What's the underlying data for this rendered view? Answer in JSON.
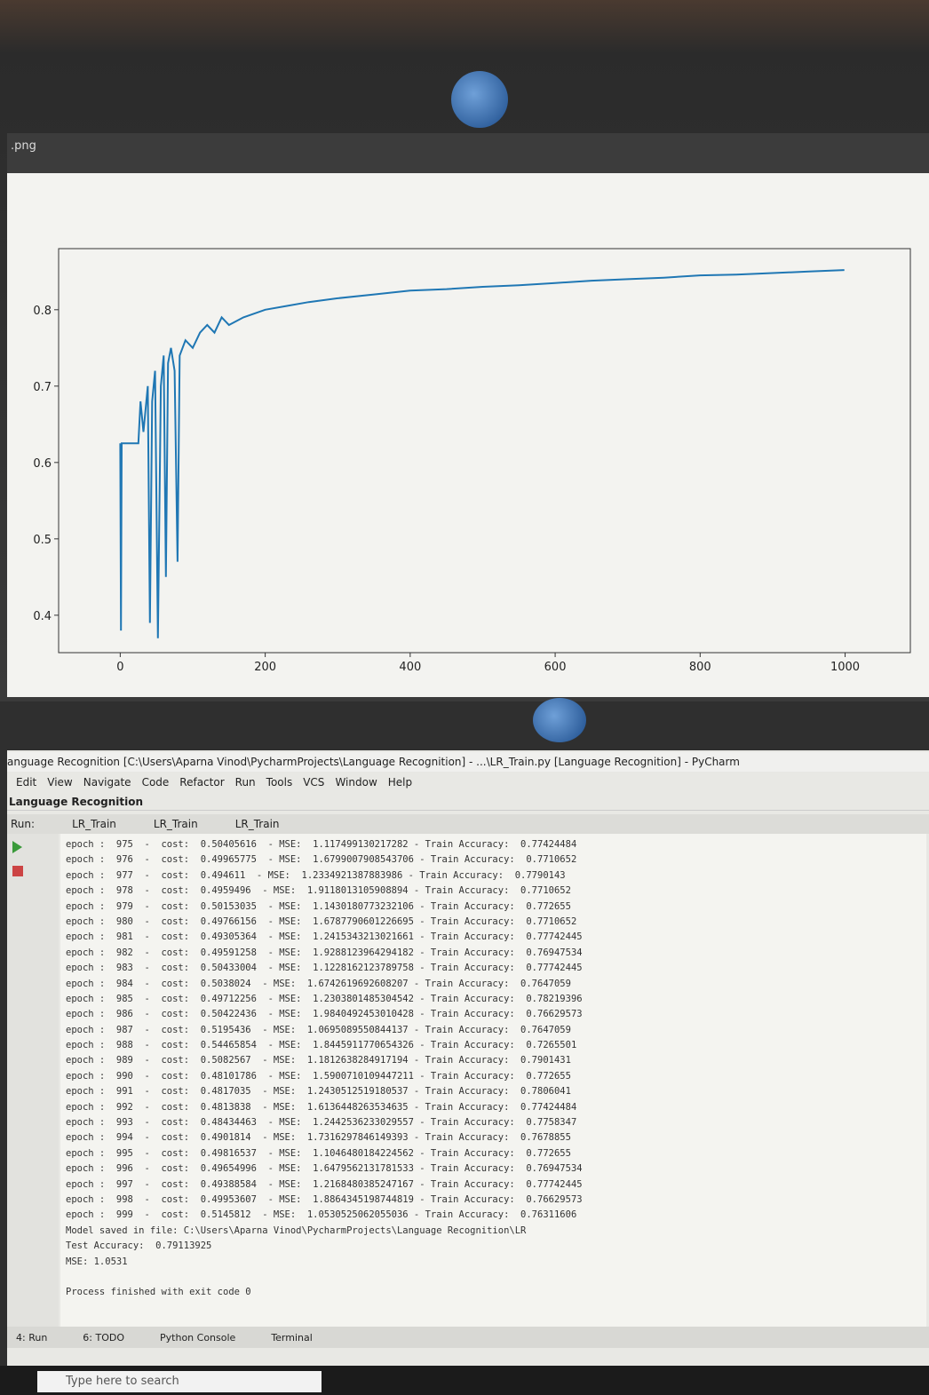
{
  "image_viewer": {
    "title": ".png"
  },
  "chart_data": {
    "type": "line",
    "color": "#1f77b4",
    "x": [
      0,
      1,
      2,
      25,
      28,
      32,
      38,
      41,
      44,
      48,
      52,
      56,
      60,
      63,
      66,
      70,
      75,
      79,
      82,
      90,
      100,
      110,
      120,
      130,
      140,
      150,
      170,
      200,
      230,
      260,
      300,
      350,
      400,
      450,
      500,
      550,
      600,
      650,
      700,
      750,
      800,
      850,
      900,
      950,
      999
    ],
    "values": [
      0.625,
      0.38,
      0.625,
      0.625,
      0.68,
      0.64,
      0.7,
      0.39,
      0.68,
      0.72,
      0.37,
      0.7,
      0.74,
      0.45,
      0.73,
      0.75,
      0.72,
      0.47,
      0.74,
      0.76,
      0.75,
      0.77,
      0.78,
      0.77,
      0.79,
      0.78,
      0.79,
      0.8,
      0.805,
      0.81,
      0.815,
      0.82,
      0.825,
      0.827,
      0.83,
      0.832,
      0.835,
      0.838,
      0.84,
      0.842,
      0.845,
      0.846,
      0.848,
      0.85,
      0.852
    ],
    "xlim": [
      -85,
      1090
    ],
    "ylim": [
      0.351,
      0.88
    ],
    "xticks": [
      0,
      200,
      400,
      600,
      800,
      1000
    ],
    "yticks": [
      0.4,
      0.5,
      0.6,
      0.7,
      0.8
    ]
  },
  "ide": {
    "title": "anguage Recognition [C:\\Users\\Aparna Vinod\\PycharmProjects\\Language Recognition] - ...\\LR_Train.py [Language Recognition] - PyCharm",
    "menu": [
      "Edit",
      "View",
      "Navigate",
      "Code",
      "Refactor",
      "Run",
      "Tools",
      "VCS",
      "Window",
      "Help"
    ],
    "breadcrumb": "Language Recognition",
    "run_label": "Run:",
    "run_tabs": [
      "LR_Train",
      "LR_Train",
      "LR_Train"
    ],
    "console": [
      "epoch :  975  -  cost:  0.50405616  - MSE:  1.117499130217282 - Train Accuracy:  0.77424484",
      "epoch :  976  -  cost:  0.49965775  - MSE:  1.6799007908543706 - Train Accuracy:  0.7710652",
      "epoch :  977  -  cost:  0.494611  - MSE:  1.2334921387883986 - Train Accuracy:  0.7790143",
      "epoch :  978  -  cost:  0.4959496  - MSE:  1.9118013105908894 - Train Accuracy:  0.7710652",
      "epoch :  979  -  cost:  0.50153035  - MSE:  1.1430180773232106 - Train Accuracy:  0.772655",
      "epoch :  980  -  cost:  0.49766156  - MSE:  1.6787790601226695 - Train Accuracy:  0.7710652",
      "epoch :  981  -  cost:  0.49305364  - MSE:  1.2415343213021661 - Train Accuracy:  0.77742445",
      "epoch :  982  -  cost:  0.49591258  - MSE:  1.9288123964294182 - Train Accuracy:  0.76947534",
      "epoch :  983  -  cost:  0.50433004  - MSE:  1.1228162123789758 - Train Accuracy:  0.77742445",
      "epoch :  984  -  cost:  0.5038024  - MSE:  1.6742619692608207 - Train Accuracy:  0.7647059",
      "epoch :  985  -  cost:  0.49712256  - MSE:  1.2303801485304542 - Train Accuracy:  0.78219396",
      "epoch :  986  -  cost:  0.50422436  - MSE:  1.9840492453010428 - Train Accuracy:  0.76629573",
      "epoch :  987  -  cost:  0.5195436  - MSE:  1.0695089550844137 - Train Accuracy:  0.7647059",
      "epoch :  988  -  cost:  0.54465854  - MSE:  1.8445911770654326 - Train Accuracy:  0.7265501",
      "epoch :  989  -  cost:  0.5082567  - MSE:  1.1812638284917194 - Train Accuracy:  0.7901431",
      "epoch :  990  -  cost:  0.48101786  - MSE:  1.5900710109447211 - Train Accuracy:  0.772655",
      "epoch :  991  -  cost:  0.4817035  - MSE:  1.2430512519180537 - Train Accuracy:  0.7806041",
      "epoch :  992  -  cost:  0.4813838  - MSE:  1.6136448263534635 - Train Accuracy:  0.77424484",
      "epoch :  993  -  cost:  0.48434463  - MSE:  1.2442536233029557 - Train Accuracy:  0.7758347",
      "epoch :  994  -  cost:  0.4901814  - MSE:  1.7316297846149393 - Train Accuracy:  0.7678855",
      "epoch :  995  -  cost:  0.49816537  - MSE:  1.1046480184224562 - Train Accuracy:  0.772655",
      "epoch :  996  -  cost:  0.49654996  - MSE:  1.6479562131781533 - Train Accuracy:  0.76947534",
      "epoch :  997  -  cost:  0.49388584  - MSE:  1.2168480385247167 - Train Accuracy:  0.77742445",
      "epoch :  998  -  cost:  0.49953607  - MSE:  1.8864345198744819 - Train Accuracy:  0.76629573",
      "epoch :  999  -  cost:  0.5145812  - MSE:  1.0530525062055036 - Train Accuracy:  0.76311606",
      "Model saved in file: C:\\Users\\Aparna Vinod\\PycharmProjects\\Language Recognition\\LR",
      "Test Accuracy:  0.79113925",
      "MSE: 1.0531"
    ],
    "exit_message": "Process finished with exit code 0",
    "bottom_tabs": [
      "4: Run",
      "6: TODO",
      "Python Console",
      "Terminal"
    ]
  },
  "taskbar": {
    "search": "Type here to search"
  }
}
